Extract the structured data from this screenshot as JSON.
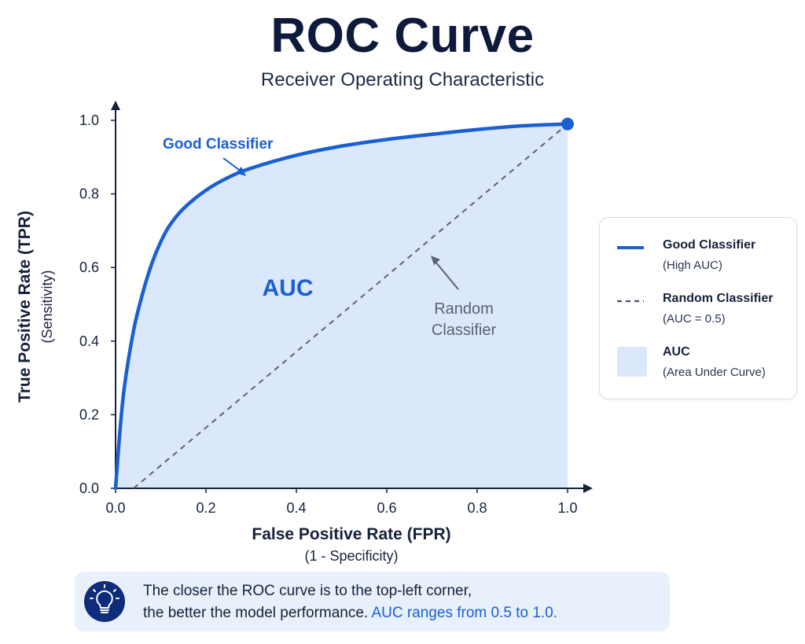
{
  "header": {
    "title": "ROC Curve",
    "subtitle": "Receiver Operating Characteristic"
  },
  "chart_data": {
    "type": "line",
    "xlabel": "False Positive Rate (FPR)",
    "xlabel_sub": "(1 - Specificity)",
    "ylabel": "True Positive Rate (TPR)",
    "ylabel_sub": "(Sensitivity)",
    "xlim": [
      0,
      1
    ],
    "ylim": [
      0,
      1
    ],
    "x_ticks": [
      "0.0",
      "0.2",
      "0.4",
      "0.6",
      "0.8",
      "1.0"
    ],
    "y_ticks": [
      "0.0",
      "0.2",
      "0.4",
      "0.6",
      "0.8",
      "1.0"
    ],
    "grid": false,
    "series": [
      {
        "name": "Good Classifier",
        "style": "solid",
        "color": "#1a5fd1",
        "x": [
          0,
          0.01,
          0.02,
          0.04,
          0.06,
          0.08,
          0.1,
          0.12,
          0.15,
          0.2,
          0.25,
          0.3,
          0.4,
          0.5,
          0.6,
          0.7,
          0.8,
          0.9,
          1.0
        ],
        "y": [
          0,
          0.16,
          0.28,
          0.43,
          0.53,
          0.61,
          0.67,
          0.715,
          0.76,
          0.81,
          0.845,
          0.87,
          0.905,
          0.93,
          0.948,
          0.962,
          0.975,
          0.985,
          0.99
        ]
      },
      {
        "name": "Random Classifier",
        "style": "dashed",
        "color": "#5b6272",
        "x": [
          0.04,
          1.0
        ],
        "y": [
          0,
          0.99
        ]
      }
    ],
    "fill": {
      "name": "AUC",
      "color": "#dbe8fb"
    },
    "annotations": [
      {
        "text": "Good Classifier",
        "color": "#1a5fd1"
      },
      {
        "text": "Random Classifier",
        "lines": [
          "Random",
          "Classifier"
        ],
        "color": "#5b6272"
      },
      {
        "text": "AUC",
        "color": "#1a5fd1"
      }
    ],
    "endpoint_marker": {
      "x": 1.0,
      "y": 0.99,
      "color": "#1a5fd1"
    }
  },
  "legend": {
    "items": [
      {
        "label": "Good Classifier",
        "note": "(High AUC)",
        "color": "#1a5fd1",
        "icon": "solid-line"
      },
      {
        "label": "Random Classifier",
        "note": "(AUC = 0.5)",
        "color": "#4a5163",
        "icon": "dashed-line"
      },
      {
        "label": "AUC",
        "note": "(Area Under Curve)",
        "color": "#dbe8fb",
        "icon": "filled-square"
      }
    ]
  },
  "callout": {
    "icon": "lightbulb-icon",
    "line1": "The closer the ROC curve is to the top-left corner,",
    "line2_prefix": "the better the model performance.",
    "line2_highlight": "AUC ranges from 0.5 to 1.0."
  }
}
